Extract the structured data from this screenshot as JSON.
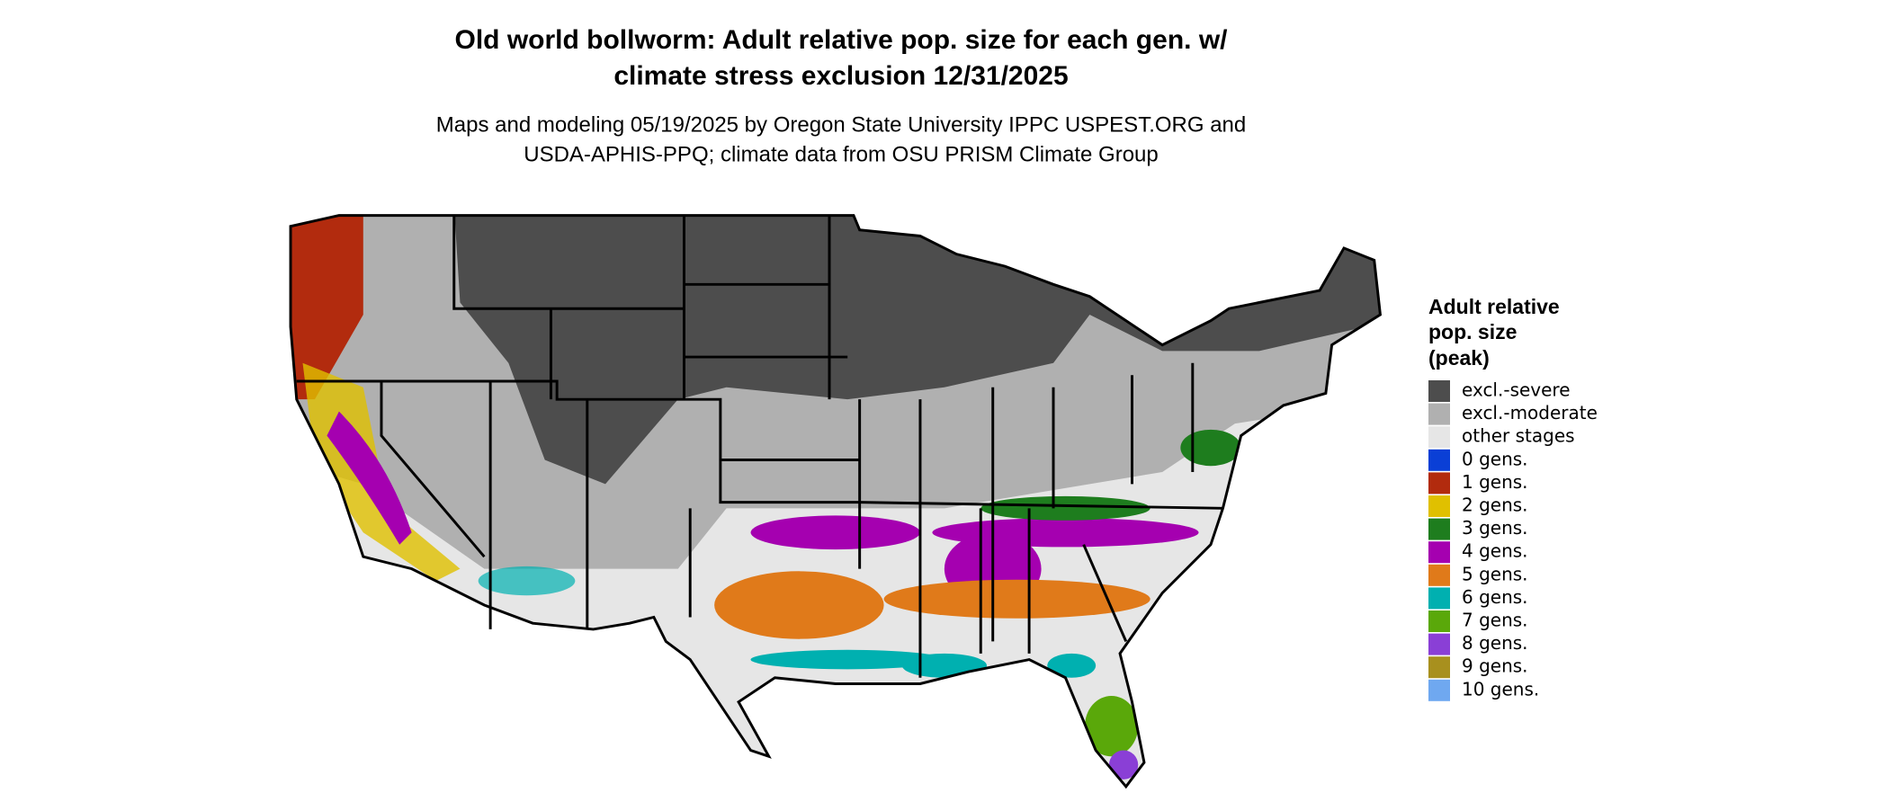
{
  "title": [
    "Old world bollworm: Adult relative pop. size for each gen. w/",
    "climate stress exclusion 12/31/2025"
  ],
  "subtitle": [
    "Maps and modeling 05/19/2025 by Oregon State University IPPC USPEST.ORG and",
    "USDA-APHIS-PPQ; climate data from OSU PRISM Climate Group"
  ],
  "legend": {
    "title": [
      "Adult relative",
      "pop. size",
      "(peak)"
    ],
    "items": [
      {
        "label": "excl.-severe",
        "color": "#4d4d4d"
      },
      {
        "label": "excl.-moderate",
        "color": "#b0b0b0"
      },
      {
        "label": "other stages",
        "color": "#e6e6e6"
      },
      {
        "label": "0 gens.",
        "color": "#0a3fd6"
      },
      {
        "label": "1 gens.",
        "color": "#b22b0e"
      },
      {
        "label": "2 gens.",
        "color": "#e0c000"
      },
      {
        "label": "3 gens.",
        "color": "#1e7d1e"
      },
      {
        "label": "4 gens.",
        "color": "#a500b0"
      },
      {
        "label": "5 gens.",
        "color": "#e07a1a"
      },
      {
        "label": "6 gens.",
        "color": "#00b0b0"
      },
      {
        "label": "7 gens.",
        "color": "#5aa80a"
      },
      {
        "label": "8 gens.",
        "color": "#8a3fd6"
      },
      {
        "label": "9 gens.",
        "color": "#a8901e"
      },
      {
        "label": "10 gens.",
        "color": "#6fa8f0"
      }
    ]
  }
}
